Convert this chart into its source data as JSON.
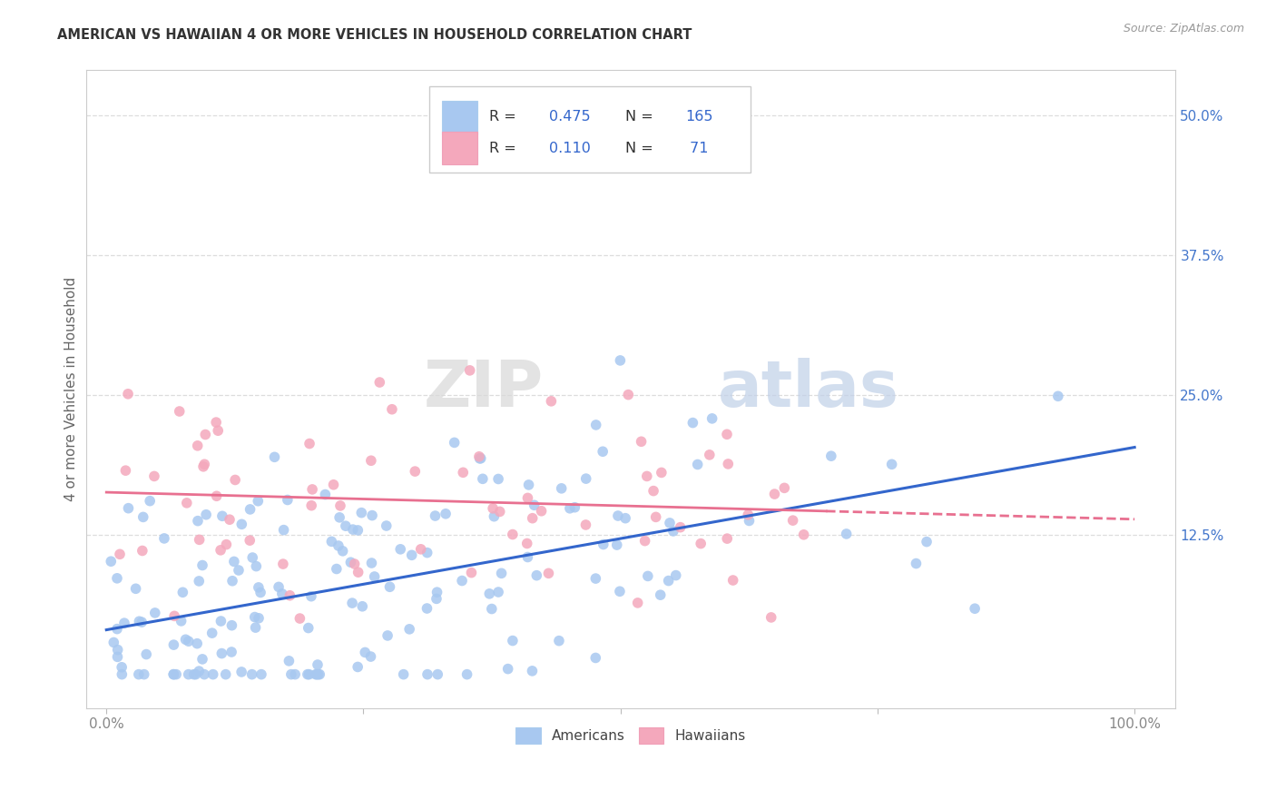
{
  "title": "AMERICAN VS HAWAIIAN 4 OR MORE VEHICLES IN HOUSEHOLD CORRELATION CHART",
  "source": "Source: ZipAtlas.com",
  "ylabel_label": "4 or more Vehicles in Household",
  "legend_labels": [
    "Americans",
    "Hawaiians"
  ],
  "american_color": "#a8c8f0",
  "hawaiian_color": "#f4a8bc",
  "american_line_color": "#3366cc",
  "hawaiian_line_color": "#e87090",
  "background_color": "#ffffff",
  "watermark_zip": "ZIP",
  "watermark_atlas": "atlas",
  "R_american": 0.475,
  "N_american": 165,
  "R_hawaiian": 0.11,
  "N_hawaiian": 71,
  "ytick_color": "#4477cc",
  "xtick_color": "#888888",
  "ylabel_color": "#666666",
  "grid_color": "#dddddd",
  "title_color": "#333333",
  "source_color": "#999999",
  "stats_label_color": "#333333"
}
